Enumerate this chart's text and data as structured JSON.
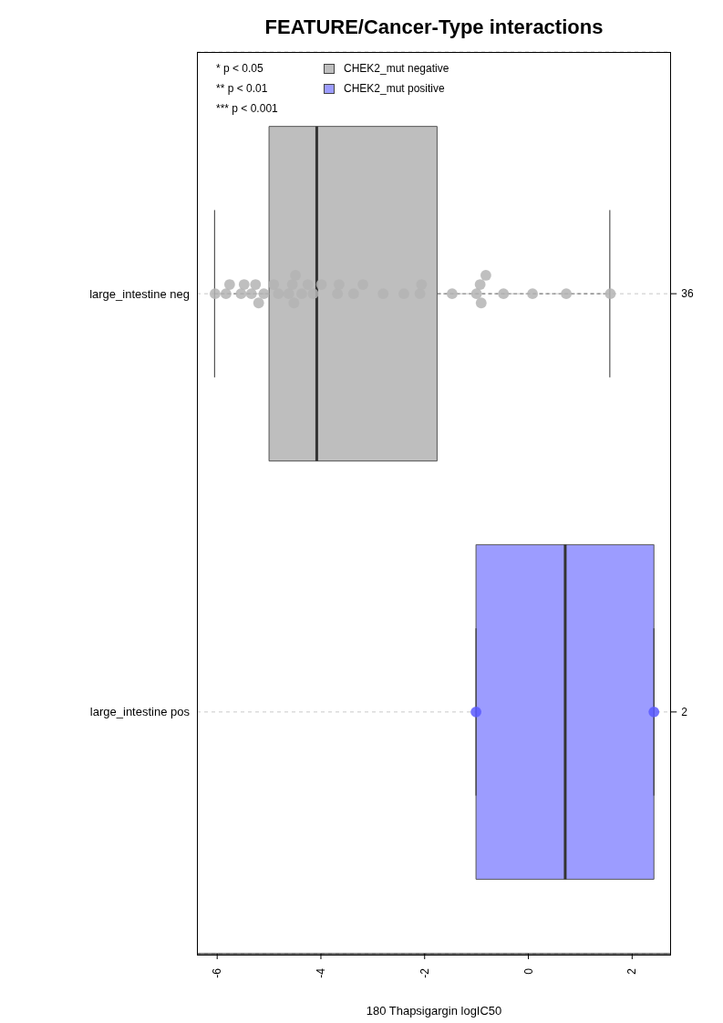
{
  "chart_data": {
    "type": "box",
    "title": "FEATURE/Cancer-Type interactions",
    "xlabel": "180 Thapsigargin logIC50",
    "orientation": "horizontal",
    "categories": [
      "large_intestine neg",
      "large_intestine pos"
    ],
    "xlim": [
      -6.39,
      2.75
    ],
    "xticks": [
      -6,
      -4,
      -2,
      0,
      2
    ],
    "grid": "y",
    "legend": "top",
    "annotations": [
      "* p < 0.05",
      "** p < 0.01",
      "*** p < 0.001",
      "36",
      "2"
    ],
    "series": [
      {
        "name": "CHEK2_mut negative",
        "color": "#bebebe",
        "boxes": [
          {
            "low": -6.05,
            "q1": -5.0,
            "median": -4.08,
            "q3": -1.76,
            "high": 1.57
          },
          null
        ]
      },
      {
        "name": "CHEK2_mut positive",
        "color": "#9c9cff",
        "boxes": [
          null,
          {
            "low": -1.01,
            "q1": -1.01,
            "median": 0.71,
            "q3": 2.42,
            "high": 2.42
          }
        ]
      },
      {
        "type": "scatter",
        "color": "#b4b4b4",
        "x": [
          "large_intestine neg",
          "large_intestine neg",
          "large_intestine neg",
          "large_intestine neg",
          "large_intestine neg",
          "large_intestine neg",
          "large_intestine neg",
          "large_intestine neg",
          "large_intestine neg",
          "large_intestine neg",
          "large_intestine neg",
          "large_intestine neg",
          "large_intestine neg",
          "large_intestine neg",
          "large_intestine neg",
          "large_intestine neg",
          "large_intestine neg",
          "large_intestine neg",
          "large_intestine neg",
          "large_intestine neg",
          "large_intestine neg",
          "large_intestine neg",
          "large_intestine neg",
          "large_intestine neg",
          "large_intestine neg",
          "large_intestine neg",
          "large_intestine neg",
          "large_intestine neg",
          "large_intestine neg",
          "large_intestine neg",
          "large_intestine neg",
          "large_intestine neg",
          "large_intestine neg",
          "large_intestine neg",
          "large_intestine neg",
          "large_intestine neg"
        ],
        "values": [
          -6.04,
          -5.83,
          -5.76,
          -5.54,
          -5.48,
          -5.34,
          -5.26,
          -5.2,
          -5.1,
          -4.91,
          -4.82,
          -4.62,
          -4.55,
          -4.52,
          -4.49,
          -4.37,
          -4.25,
          -4.15,
          -3.99,
          -3.68,
          -3.65,
          -3.37,
          -3.19,
          -2.8,
          -2.4,
          -2.09,
          -2.06,
          -1.47,
          -1.0,
          -0.93,
          -0.91,
          -0.82,
          -0.48,
          0.08,
          0.73,
          1.58
        ]
      },
      {
        "type": "scatter",
        "color": "#5a5aff",
        "x": [
          "large_intestine pos",
          "large_intestine pos"
        ],
        "values": [
          -1.01,
          2.42
        ]
      }
    ]
  }
}
